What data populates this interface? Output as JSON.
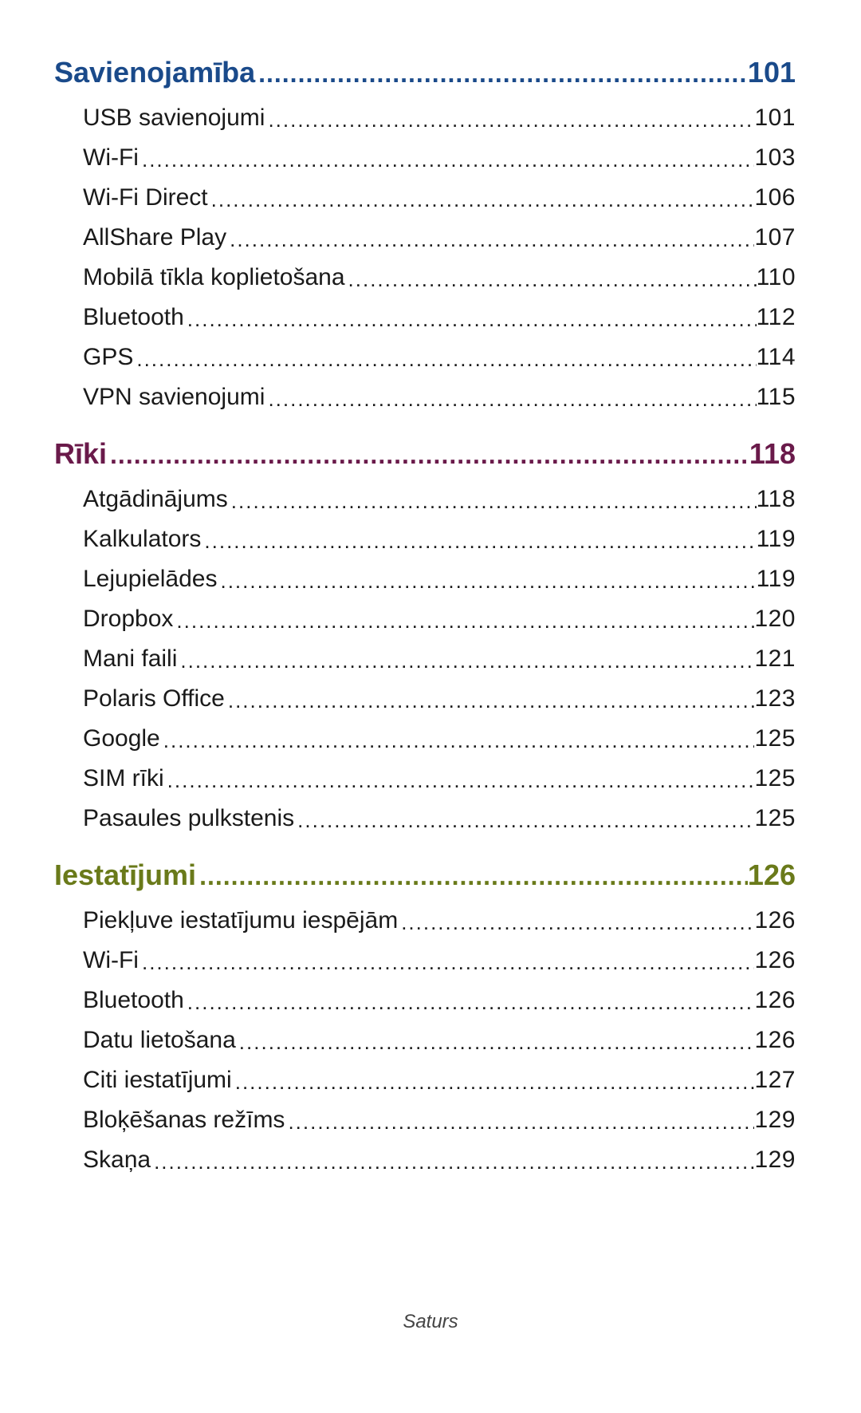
{
  "styling": {
    "header_fontsize": 36,
    "header_fontweight": 700,
    "sub_fontsize": 30,
    "sub_color": "#1a1a1a",
    "background_color": "#ffffff",
    "leader_char_heavy": "..................................................................................................................................",
    "leader_char_light": ".................................................................................................................................."
  },
  "sections": [
    {
      "title": "Savienojamība",
      "page": "101",
      "color": "#1a4a8a",
      "items": [
        {
          "title": "USB savienojumi",
          "page": "101"
        },
        {
          "title": "Wi-Fi",
          "page": "103"
        },
        {
          "title": "Wi-Fi Direct",
          "page": "106"
        },
        {
          "title": "AllShare Play",
          "page": "107"
        },
        {
          "title": "Mobilā tīkla koplietošana",
          "page": "110"
        },
        {
          "title": "Bluetooth",
          "page": "112"
        },
        {
          "title": "GPS",
          "page": "114"
        },
        {
          "title": "VPN savienojumi",
          "page": "115"
        }
      ]
    },
    {
      "title": "Rīki",
      "page": "118",
      "color": "#6a1a4a",
      "items": [
        {
          "title": "Atgādinājums",
          "page": "118"
        },
        {
          "title": "Kalkulators",
          "page": "119"
        },
        {
          "title": "Lejupielādes",
          "page": "119"
        },
        {
          "title": "Dropbox",
          "page": "120"
        },
        {
          "title": "Mani faili",
          "page": "121"
        },
        {
          "title": "Polaris Office",
          "page": "123"
        },
        {
          "title": "Google",
          "page": "125"
        },
        {
          "title": "SIM rīki",
          "page": "125"
        },
        {
          "title": "Pasaules pulkstenis",
          "page": "125"
        }
      ]
    },
    {
      "title": "Iestatījumi",
      "page": "126",
      "color": "#6a7a1a",
      "items": [
        {
          "title": "Piekļuve iestatījumu iespējām",
          "page": "126"
        },
        {
          "title": "Wi-Fi",
          "page": "126"
        },
        {
          "title": "Bluetooth",
          "page": "126"
        },
        {
          "title": "Datu lietošana",
          "page": "126"
        },
        {
          "title": "Citi iestatījumi",
          "page": "127"
        },
        {
          "title": "Bloķēšanas režīms",
          "page": "129"
        },
        {
          "title": "Skaņa",
          "page": "129"
        }
      ]
    }
  ],
  "footer": "Saturs"
}
